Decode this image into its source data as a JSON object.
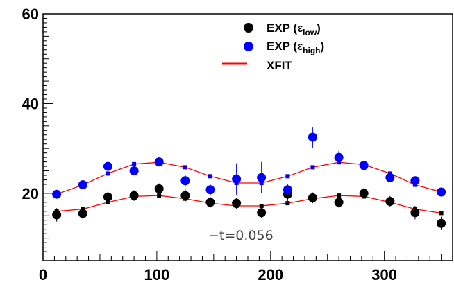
{
  "chart_data": {
    "type": "scatter",
    "xlim": [
      0,
      360
    ],
    "ylim": [
      5,
      60
    ],
    "xticks": [
      0,
      100,
      200,
      300
    ],
    "yticks": [
      20,
      40,
      60
    ],
    "grid": false,
    "legend_position": "top-right",
    "annotation": "−t=0.056",
    "series": [
      {
        "name_main": "EXP (",
        "name_sym": "ε",
        "name_sub": "low",
        "name_close": ")",
        "kind": "points",
        "color": "#000000",
        "x": [
          12,
          35,
          57,
          80,
          102,
          125,
          147,
          170,
          192,
          215,
          237,
          260,
          282,
          305,
          327,
          350
        ],
        "y": [
          15.2,
          15.5,
          19.2,
          19.5,
          21.0,
          19.5,
          18.0,
          17.8,
          15.7,
          19.8,
          19.0,
          18.0,
          20.0,
          18.2,
          15.7,
          13.3
        ],
        "err": [
          1.5,
          1.5,
          1.5,
          1.2,
          1.2,
          1.5,
          1.2,
          1.2,
          1.2,
          1.5,
          1.2,
          1.2,
          1.2,
          1.2,
          1.5,
          1.5
        ]
      },
      {
        "name_main": "EXP (",
        "name_sym": "ε",
        "name_sub": "high",
        "name_close": ")",
        "kind": "points",
        "color": "#0000ff",
        "x": [
          12,
          35,
          57,
          80,
          102,
          125,
          147,
          170,
          192,
          215,
          237,
          260,
          282,
          305,
          327,
          350
        ],
        "y": [
          19.8,
          21.9,
          26.0,
          25.0,
          27.0,
          22.8,
          20.8,
          23.2,
          23.5,
          20.8,
          32.5,
          28.0,
          26.2,
          23.5,
          22.8,
          20.3
        ],
        "err": [
          0.8,
          0.8,
          0.8,
          0.8,
          1.0,
          1.2,
          1.2,
          3.5,
          3.5,
          1.2,
          2.3,
          1.5,
          0.8,
          1.0,
          0.8,
          0.8
        ]
      },
      {
        "name_main": "XFIT",
        "kind": "fit",
        "color": "#ff0000",
        "x": [
          12,
          35,
          57,
          80,
          102,
          125,
          147,
          170,
          192,
          215,
          237,
          260,
          282,
          305,
          327,
          350
        ],
        "y_low": [
          16.0,
          16.5,
          18.0,
          19.3,
          19.5,
          18.8,
          17.8,
          17.2,
          17.2,
          17.8,
          18.8,
          19.5,
          19.3,
          18.0,
          16.5,
          15.6
        ],
        "y_high": [
          19.8,
          21.9,
          24.4,
          26.5,
          26.9,
          25.8,
          23.8,
          22.3,
          22.3,
          23.8,
          25.8,
          26.9,
          26.4,
          24.4,
          21.9,
          20.3
        ]
      }
    ]
  }
}
